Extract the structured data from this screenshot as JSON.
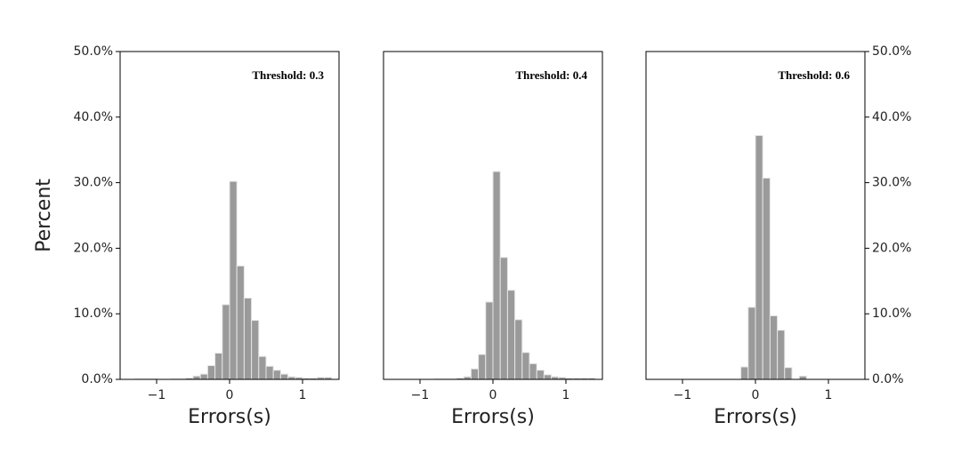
{
  "chart_data": [
    {
      "type": "histogram",
      "annotation": "Threshold: 0.3",
      "xlabel": "Errors(s)",
      "ylabel": "Percent",
      "y_axis_side": "left",
      "bins": [
        -1.3,
        -1.2,
        -1.1,
        -1.0,
        -0.9,
        -0.8,
        -0.7,
        -0.6,
        -0.5,
        -0.4,
        -0.3,
        -0.2,
        -0.1,
        0,
        0.1,
        0.2,
        0.3,
        0.4,
        0.5,
        0.6,
        0.7,
        0.8,
        0.9,
        1.0,
        1.1,
        1.2,
        1.3,
        1.4
      ],
      "counts": [
        0.1,
        0.1,
        0.1,
        0,
        0,
        0.1,
        0.1,
        0.2,
        0.5,
        0.8,
        2.1,
        4.0,
        11.4,
        30.2,
        17.3,
        12.4,
        9.0,
        3.5,
        2.0,
        1.4,
        0.8,
        0.4,
        0.3,
        0.2,
        0.2,
        0.3,
        0.3
      ],
      "color": "#9a9a9a",
      "edgecolor": "#e6e6e6",
      "xlim": [
        -1.5,
        1.5
      ],
      "xticks": [
        {
          "value": -1,
          "label": "−1"
        },
        0,
        1
      ],
      "ylim": [
        0,
        50
      ],
      "yticks": [
        {
          "value": 0,
          "label": "0.0%"
        },
        {
          "value": 10,
          "label": "10.0%"
        },
        {
          "value": 20,
          "label": "20.0%"
        },
        {
          "value": 30,
          "label": "30.0%"
        },
        {
          "value": 40,
          "label": "40.0%"
        },
        {
          "value": 50,
          "label": "50.0%"
        }
      ]
    },
    {
      "type": "histogram",
      "annotation": "Threshold: 0.4",
      "xlabel": "Errors(s)",
      "bins": [
        -1.3,
        -1.2,
        -1.1,
        -1.0,
        -0.9,
        -0.8,
        -0.7,
        -0.6,
        -0.5,
        -0.4,
        -0.3,
        -0.2,
        -0.1,
        0,
        0.1,
        0.2,
        0.3,
        0.4,
        0.5,
        0.6,
        0.7,
        0.8,
        0.9,
        1.0,
        1.1,
        1.2,
        1.3,
        1.4
      ],
      "counts": [
        0,
        0,
        0,
        0,
        0,
        0.1,
        0.1,
        0.1,
        0.2,
        0.4,
        1.6,
        3.8,
        11.8,
        31.7,
        18.6,
        13.6,
        9.1,
        4.1,
        2.4,
        1.4,
        0.7,
        0.4,
        0.3,
        0.2,
        0.2,
        0.2,
        0.2
      ],
      "color": "#9a9a9a",
      "edgecolor": "#e6e6e6",
      "xlim": [
        -1.5,
        1.5
      ],
      "xticks": [
        {
          "value": -1,
          "label": "−1"
        },
        0,
        1
      ],
      "ylim": [
        0,
        50
      ]
    },
    {
      "type": "histogram",
      "annotation": "Threshold: 0.6",
      "xlabel": "Errors(s)",
      "y_axis_side": "right",
      "bins": [
        -1.3,
        -1.2,
        -1.1,
        -1.0,
        -0.9,
        -0.8,
        -0.7,
        -0.6,
        -0.5,
        -0.4,
        -0.3,
        -0.2,
        -0.1,
        0,
        0.1,
        0.2,
        0.3,
        0.4,
        0.5,
        0.6,
        0.7,
        0.8,
        0.9,
        1.0,
        1.1,
        1.2,
        1.3,
        1.4
      ],
      "counts": [
        0,
        0,
        0,
        0,
        0,
        0,
        0,
        0,
        0,
        0,
        0,
        1.9,
        11.0,
        37.2,
        30.7,
        9.7,
        7.5,
        1.8,
        0,
        0.5,
        0,
        0,
        0,
        0,
        0,
        0,
        0
      ],
      "color": "#9a9a9a",
      "edgecolor": "#e6e6e6",
      "xlim": [
        -1.5,
        1.5
      ],
      "xticks": [
        {
          "value": -1,
          "label": "−1"
        },
        0,
        1
      ],
      "ylim": [
        0,
        50
      ],
      "yticks": [
        {
          "value": 0,
          "label": "0.0%"
        },
        {
          "value": 10,
          "label": "10.0%"
        },
        {
          "value": 20,
          "label": "20.0%"
        },
        {
          "value": 30,
          "label": "30.0%"
        },
        {
          "value": 40,
          "label": "40.0%"
        },
        {
          "value": 50,
          "label": "50.0%"
        }
      ]
    }
  ]
}
